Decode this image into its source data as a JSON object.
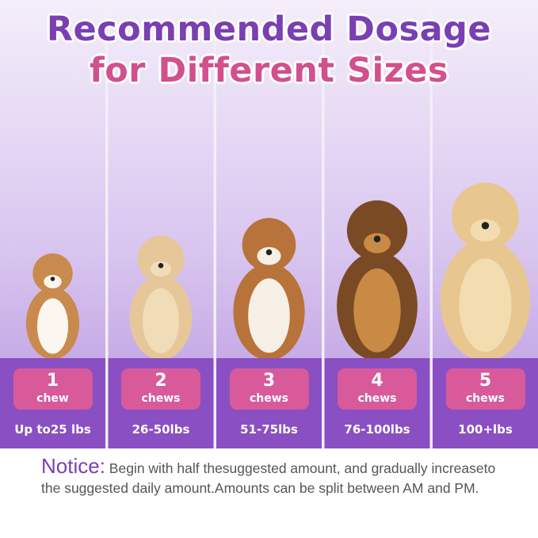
{
  "header": {
    "title_line1": "Recommended Dosage",
    "title_line2": "for Different Sizes"
  },
  "dosage": [
    {
      "count": "1",
      "unit": "chew",
      "weight": "Up to25 lbs"
    },
    {
      "count": "2",
      "unit": "chews",
      "weight": "26-50lbs"
    },
    {
      "count": "3",
      "unit": "chews",
      "weight": "51-75lbs"
    },
    {
      "count": "4",
      "unit": "chews",
      "weight": "76-100lbs"
    },
    {
      "count": "5",
      "unit": "chews",
      "weight": "100+lbs"
    }
  ],
  "notice": {
    "label": "Notice:",
    "text": "Begin with half thesuggested amount, and gradually increaseto the suggested daily amount.Amounts can be split between AM and PM."
  }
}
